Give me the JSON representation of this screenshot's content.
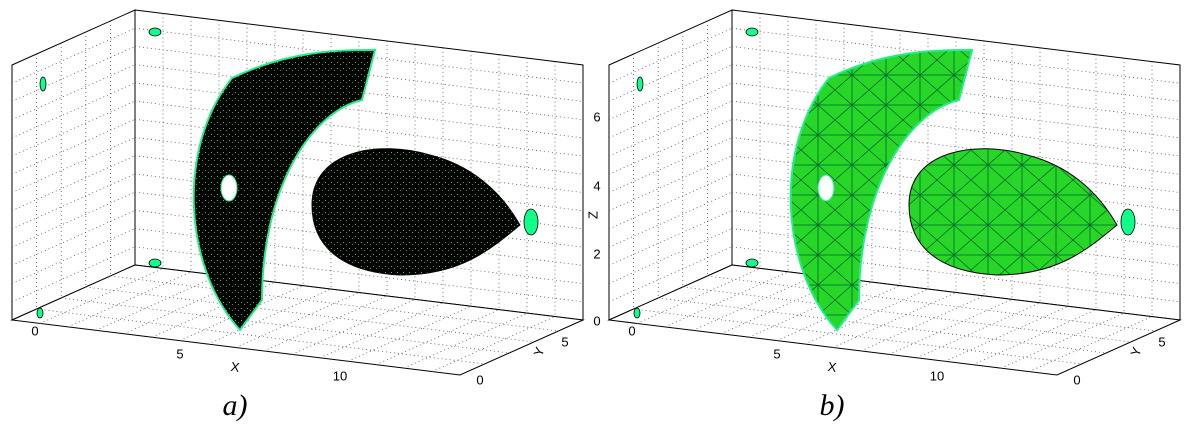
{
  "panels": [
    {
      "caption": "a)",
      "x_axis": {
        "title": "X",
        "ticks": [
          0,
          5,
          10
        ]
      },
      "y_axis": {
        "title": "Y",
        "ticks": [
          0,
          5
        ]
      },
      "z_axis": {
        "title": "Z",
        "ticks": [
          0,
          2,
          4,
          6
        ]
      }
    },
    {
      "caption": "b)",
      "x_axis": {
        "title": "X",
        "ticks": [
          0,
          5,
          10
        ]
      },
      "y_axis": {
        "title": "Y",
        "ticks": [
          0,
          5
        ]
      }
    }
  ]
}
